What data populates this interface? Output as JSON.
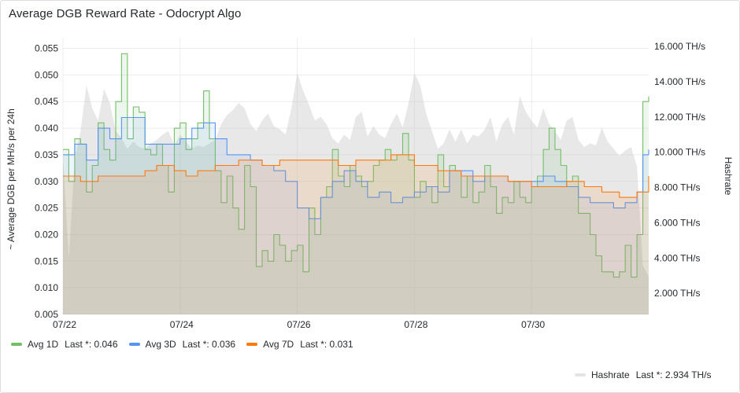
{
  "panel": {
    "title": "Average DGB Reward Rate - Odocrypt Algo"
  },
  "chart_data": {
    "type": "line",
    "y_left": {
      "label": "~ Average DGB per MH/s per 24h",
      "min": 0.005,
      "max": 0.057,
      "ticks": [
        0.005,
        0.01,
        0.015,
        0.02,
        0.025,
        0.03,
        0.035,
        0.04,
        0.045,
        0.05,
        0.055
      ],
      "tick_labels": [
        "0.005",
        "0.010",
        "0.015",
        "0.020",
        "0.025",
        "0.030",
        "0.035",
        "0.040",
        "0.045",
        "0.050",
        "0.055"
      ]
    },
    "y_right": {
      "label": "Hashrate",
      "min": 800,
      "max": 16500,
      "ticks": [
        2000,
        4000,
        6000,
        8000,
        10000,
        12000,
        14000,
        16000
      ],
      "tick_labels": [
        "2.000 TH/s",
        "4.000 TH/s",
        "6.000 TH/s",
        "8.000 TH/s",
        "10.000 TH/s",
        "12.000 TH/s",
        "14.000 TH/s",
        "16.000 TH/s"
      ]
    },
    "x_axis": {
      "min": 0,
      "max": 10,
      "ticks": [
        0,
        2,
        4,
        6,
        8
      ],
      "tick_labels": [
        "07/22",
        "07/24",
        "07/26",
        "07/28",
        "07/30"
      ]
    },
    "grid": true,
    "series": [
      {
        "name": "Avg 1D",
        "color": "#73bf69",
        "last_label": "Last *: 0.046",
        "axis": "left",
        "points": [
          [
            0,
            0.036
          ],
          [
            0.1,
            0.03
          ],
          [
            0.2,
            0.038
          ],
          [
            0.3,
            0.037
          ],
          [
            0.4,
            0.028
          ],
          [
            0.5,
            0.033
          ],
          [
            0.6,
            0.041
          ],
          [
            0.7,
            0.036
          ],
          [
            0.8,
            0.034
          ],
          [
            0.9,
            0.045
          ],
          [
            1.0,
            0.054
          ],
          [
            1.1,
            0.038
          ],
          [
            1.2,
            0.044
          ],
          [
            1.3,
            0.043
          ],
          [
            1.4,
            0.036
          ],
          [
            1.5,
            0.035
          ],
          [
            1.6,
            0.037
          ],
          [
            1.7,
            0.033
          ],
          [
            1.8,
            0.028
          ],
          [
            1.9,
            0.04
          ],
          [
            2.0,
            0.041
          ],
          [
            2.1,
            0.036
          ],
          [
            2.2,
            0.038
          ],
          [
            2.3,
            0.041
          ],
          [
            2.4,
            0.047
          ],
          [
            2.5,
            0.038
          ],
          [
            2.6,
            0.032
          ],
          [
            2.7,
            0.026
          ],
          [
            2.8,
            0.031
          ],
          [
            2.9,
            0.025
          ],
          [
            3.0,
            0.021
          ],
          [
            3.1,
            0.033
          ],
          [
            3.2,
            0.029
          ],
          [
            3.3,
            0.014
          ],
          [
            3.4,
            0.017
          ],
          [
            3.5,
            0.015
          ],
          [
            3.6,
            0.02
          ],
          [
            3.7,
            0.018
          ],
          [
            3.8,
            0.015
          ],
          [
            3.9,
            0.017
          ],
          [
            4.0,
            0.018
          ],
          [
            4.1,
            0.013
          ],
          [
            4.2,
            0.025
          ],
          [
            4.3,
            0.02
          ],
          [
            4.4,
            0.027
          ],
          [
            4.5,
            0.029
          ],
          [
            4.6,
            0.036
          ],
          [
            4.7,
            0.031
          ],
          [
            4.8,
            0.029
          ],
          [
            4.9,
            0.033
          ],
          [
            5.0,
            0.031
          ],
          [
            5.1,
            0.029
          ],
          [
            5.2,
            0.03
          ],
          [
            5.3,
            0.033
          ],
          [
            5.4,
            0.034
          ],
          [
            5.5,
            0.036
          ],
          [
            5.6,
            0.034
          ],
          [
            5.7,
            0.035
          ],
          [
            5.8,
            0.039
          ],
          [
            5.9,
            0.034
          ],
          [
            6.0,
            0.027
          ],
          [
            6.1,
            0.03
          ],
          [
            6.2,
            0.029
          ],
          [
            6.3,
            0.026
          ],
          [
            6.4,
            0.035
          ],
          [
            6.5,
            0.029
          ],
          [
            6.6,
            0.033
          ],
          [
            6.7,
            0.032
          ],
          [
            6.8,
            0.027
          ],
          [
            6.9,
            0.031
          ],
          [
            7.0,
            0.026
          ],
          [
            7.1,
            0.028
          ],
          [
            7.2,
            0.033
          ],
          [
            7.3,
            0.029
          ],
          [
            7.4,
            0.024
          ],
          [
            7.5,
            0.027
          ],
          [
            7.6,
            0.026
          ],
          [
            7.7,
            0.03
          ],
          [
            7.8,
            0.027
          ],
          [
            7.9,
            0.026
          ],
          [
            8.0,
            0.029
          ],
          [
            8.1,
            0.031
          ],
          [
            8.2,
            0.036
          ],
          [
            8.3,
            0.04
          ],
          [
            8.4,
            0.036
          ],
          [
            8.5,
            0.033
          ],
          [
            8.6,
            0.03
          ],
          [
            8.7,
            0.031
          ],
          [
            8.8,
            0.024
          ],
          [
            8.9,
            0.024
          ],
          [
            9.0,
            0.02
          ],
          [
            9.1,
            0.016
          ],
          [
            9.2,
            0.013
          ],
          [
            9.3,
            0.013
          ],
          [
            9.4,
            0.012
          ],
          [
            9.5,
            0.013
          ],
          [
            9.6,
            0.018
          ],
          [
            9.7,
            0.012
          ],
          [
            9.8,
            0.02
          ],
          [
            9.9,
            0.045
          ],
          [
            10.0,
            0.046
          ]
        ]
      },
      {
        "name": "Avg 3D",
        "color": "#5794f2",
        "last_label": "Last *: 0.036",
        "axis": "left",
        "points": [
          [
            0,
            0.035
          ],
          [
            0.2,
            0.037
          ],
          [
            0.4,
            0.034
          ],
          [
            0.6,
            0.04
          ],
          [
            0.8,
            0.038
          ],
          [
            1.0,
            0.042
          ],
          [
            1.2,
            0.042
          ],
          [
            1.4,
            0.037
          ],
          [
            1.6,
            0.037
          ],
          [
            1.8,
            0.037
          ],
          [
            2.0,
            0.038
          ],
          [
            2.2,
            0.04
          ],
          [
            2.4,
            0.041
          ],
          [
            2.6,
            0.038
          ],
          [
            2.8,
            0.035
          ],
          [
            3.0,
            0.035
          ],
          [
            3.2,
            0.034
          ],
          [
            3.4,
            0.033
          ],
          [
            3.6,
            0.032
          ],
          [
            3.8,
            0.03
          ],
          [
            4.0,
            0.025
          ],
          [
            4.2,
            0.023
          ],
          [
            4.4,
            0.027
          ],
          [
            4.6,
            0.03
          ],
          [
            4.8,
            0.032
          ],
          [
            5.0,
            0.03
          ],
          [
            5.2,
            0.027
          ],
          [
            5.4,
            0.028
          ],
          [
            5.6,
            0.026
          ],
          [
            5.8,
            0.027
          ],
          [
            6.0,
            0.028
          ],
          [
            6.2,
            0.029
          ],
          [
            6.4,
            0.028
          ],
          [
            6.6,
            0.032
          ],
          [
            6.8,
            0.032
          ],
          [
            7.0,
            0.03
          ],
          [
            7.2,
            0.031
          ],
          [
            7.4,
            0.031
          ],
          [
            7.6,
            0.03
          ],
          [
            7.8,
            0.03
          ],
          [
            8.0,
            0.03
          ],
          [
            8.2,
            0.031
          ],
          [
            8.4,
            0.03
          ],
          [
            8.6,
            0.029
          ],
          [
            8.8,
            0.027
          ],
          [
            9.0,
            0.026
          ],
          [
            9.2,
            0.026
          ],
          [
            9.4,
            0.025
          ],
          [
            9.6,
            0.026
          ],
          [
            9.8,
            0.028
          ],
          [
            9.9,
            0.035
          ],
          [
            10.0,
            0.036
          ]
        ]
      },
      {
        "name": "Avg 7D",
        "color": "#ff780a",
        "last_label": "Last *: 0.031",
        "axis": "left",
        "points": [
          [
            0,
            0.031
          ],
          [
            0.3,
            0.03
          ],
          [
            0.6,
            0.031
          ],
          [
            1.0,
            0.031
          ],
          [
            1.4,
            0.032
          ],
          [
            1.6,
            0.033
          ],
          [
            1.9,
            0.032
          ],
          [
            2.1,
            0.031
          ],
          [
            2.3,
            0.032
          ],
          [
            2.6,
            0.033
          ],
          [
            3.0,
            0.034
          ],
          [
            3.4,
            0.033
          ],
          [
            3.7,
            0.034
          ],
          [
            4.0,
            0.034
          ],
          [
            4.4,
            0.034
          ],
          [
            4.7,
            0.033
          ],
          [
            5.0,
            0.034
          ],
          [
            5.3,
            0.034
          ],
          [
            5.6,
            0.035
          ],
          [
            6.0,
            0.033
          ],
          [
            6.4,
            0.032
          ],
          [
            6.8,
            0.031
          ],
          [
            7.2,
            0.031
          ],
          [
            7.6,
            0.03
          ],
          [
            8.0,
            0.029
          ],
          [
            8.3,
            0.029
          ],
          [
            8.6,
            0.03
          ],
          [
            8.9,
            0.029
          ],
          [
            9.2,
            0.028
          ],
          [
            9.5,
            0.027
          ],
          [
            9.8,
            0.028
          ],
          [
            10.0,
            0.031
          ]
        ]
      },
      {
        "name": "Hashrate",
        "color": "#cccccc",
        "last_label": "Last *: 2.934 TH/s",
        "axis": "right",
        "points": [
          [
            0,
            9800
          ],
          [
            0.1,
            4000
          ],
          [
            0.2,
            9600
          ],
          [
            0.3,
            11200
          ],
          [
            0.4,
            13800
          ],
          [
            0.5,
            12500
          ],
          [
            0.6,
            11800
          ],
          [
            0.7,
            13600
          ],
          [
            0.8,
            12800
          ],
          [
            0.9,
            11200
          ],
          [
            1.0,
            10800
          ],
          [
            1.1,
            10200
          ],
          [
            1.2,
            10600
          ],
          [
            1.3,
            10300
          ],
          [
            1.4,
            10200
          ],
          [
            1.5,
            10500
          ],
          [
            1.6,
            10700
          ],
          [
            1.7,
            11000
          ],
          [
            1.8,
            11200
          ],
          [
            1.9,
            10400
          ],
          [
            2.0,
            11000
          ],
          [
            2.1,
            10600
          ],
          [
            2.2,
            10200
          ],
          [
            2.3,
            10400
          ],
          [
            2.4,
            10300
          ],
          [
            2.5,
            10500
          ],
          [
            2.6,
            10700
          ],
          [
            2.7,
            11600
          ],
          [
            2.8,
            12100
          ],
          [
            2.9,
            12400
          ],
          [
            3.0,
            12800
          ],
          [
            3.1,
            12500
          ],
          [
            3.2,
            11600
          ],
          [
            3.3,
            11200
          ],
          [
            3.4,
            11800
          ],
          [
            3.5,
            12200
          ],
          [
            3.6,
            11500
          ],
          [
            3.7,
            11300
          ],
          [
            3.8,
            11000
          ],
          [
            3.9,
            12500
          ],
          [
            4.0,
            14500
          ],
          [
            4.1,
            13500
          ],
          [
            4.2,
            12700
          ],
          [
            4.3,
            11800
          ],
          [
            4.4,
            12000
          ],
          [
            4.5,
            11600
          ],
          [
            4.6,
            10800
          ],
          [
            4.7,
            10500
          ],
          [
            4.8,
            11000
          ],
          [
            4.9,
            10700
          ],
          [
            5.0,
            12000
          ],
          [
            5.1,
            12300
          ],
          [
            5.2,
            10900
          ],
          [
            5.3,
            11500
          ],
          [
            5.4,
            11000
          ],
          [
            5.5,
            10800
          ],
          [
            5.6,
            11600
          ],
          [
            5.7,
            12200
          ],
          [
            5.8,
            11400
          ],
          [
            5.9,
            12800
          ],
          [
            6.0,
            14500
          ],
          [
            6.1,
            13800
          ],
          [
            6.2,
            12200
          ],
          [
            6.3,
            11200
          ],
          [
            6.4,
            10200
          ],
          [
            6.5,
            10500
          ],
          [
            6.6,
            11300
          ],
          [
            6.7,
            10600
          ],
          [
            6.8,
            11300
          ],
          [
            6.9,
            10500
          ],
          [
            7.0,
            11000
          ],
          [
            7.1,
            10900
          ],
          [
            7.2,
            11300
          ],
          [
            7.3,
            12000
          ],
          [
            7.4,
            10600
          ],
          [
            7.5,
            11600
          ],
          [
            7.6,
            12000
          ],
          [
            7.7,
            11000
          ],
          [
            7.8,
            13200
          ],
          [
            7.9,
            12300
          ],
          [
            8.0,
            11800
          ],
          [
            8.1,
            11400
          ],
          [
            8.2,
            12500
          ],
          [
            8.3,
            11600
          ],
          [
            8.4,
            11200
          ],
          [
            8.5,
            10700
          ],
          [
            8.6,
            11800
          ],
          [
            8.7,
            12000
          ],
          [
            8.8,
            10700
          ],
          [
            8.9,
            10300
          ],
          [
            9.0,
            10500
          ],
          [
            9.1,
            10400
          ],
          [
            9.2,
            11400
          ],
          [
            9.3,
            10600
          ],
          [
            9.4,
            10200
          ],
          [
            9.5,
            9800
          ],
          [
            9.6,
            10100
          ],
          [
            9.7,
            10300
          ],
          [
            9.8,
            9200
          ],
          [
            9.9,
            3600
          ],
          [
            10.0,
            2934
          ]
        ]
      }
    ],
    "legend": {
      "placement": "bottom",
      "hashrate_placement": "bottom-right"
    }
  }
}
